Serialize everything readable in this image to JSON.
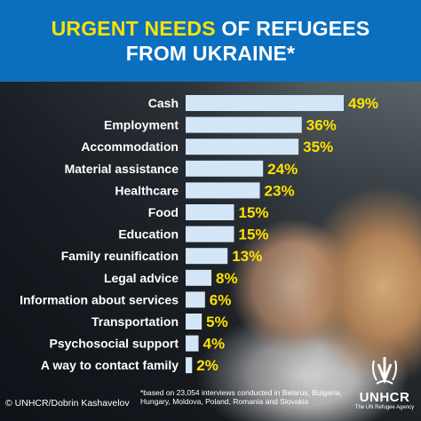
{
  "header": {
    "title_accent": "URGENT NEEDS",
    "title_rest": " OF REFUGEES",
    "title_line2": "FROM UKRAINE*"
  },
  "chart_data": {
    "type": "bar",
    "orientation": "horizontal",
    "title": "URGENT NEEDS OF REFUGEES FROM UKRAINE*",
    "categories": [
      "Cash",
      "Employment",
      "Accommodation",
      "Material assistance",
      "Healthcare",
      "Food",
      "Education",
      "Family reunification",
      "Legal advice",
      "Information about services",
      "Transportation",
      "Psychosocial support",
      "A way to contact family"
    ],
    "values": [
      49,
      36,
      35,
      24,
      23,
      15,
      15,
      13,
      8,
      6,
      5,
      4,
      2
    ],
    "value_labels": [
      "49%",
      "36%",
      "35%",
      "24%",
      "23%",
      "15%",
      "15%",
      "13%",
      "8%",
      "6%",
      "5%",
      "4%",
      "2%"
    ],
    "xlim": [
      0,
      49
    ],
    "unit": "%",
    "grid": false,
    "colors": {
      "bar": "#d3e6f7",
      "value": "#ffe100"
    }
  },
  "footer": {
    "credit": "© UNHCR/Dobrin Kashavelov",
    "footnote": "*based on 23,054 interviews conducted in Belarus, Bulgaria, Hungary, Moldova, Poland, Romania and Slovakia",
    "logo_name": "UNHCR",
    "logo_sub": "The UN Refugee Agency"
  },
  "colors": {
    "header_bg": "#0b6fbf",
    "accent": "#ffe100"
  }
}
